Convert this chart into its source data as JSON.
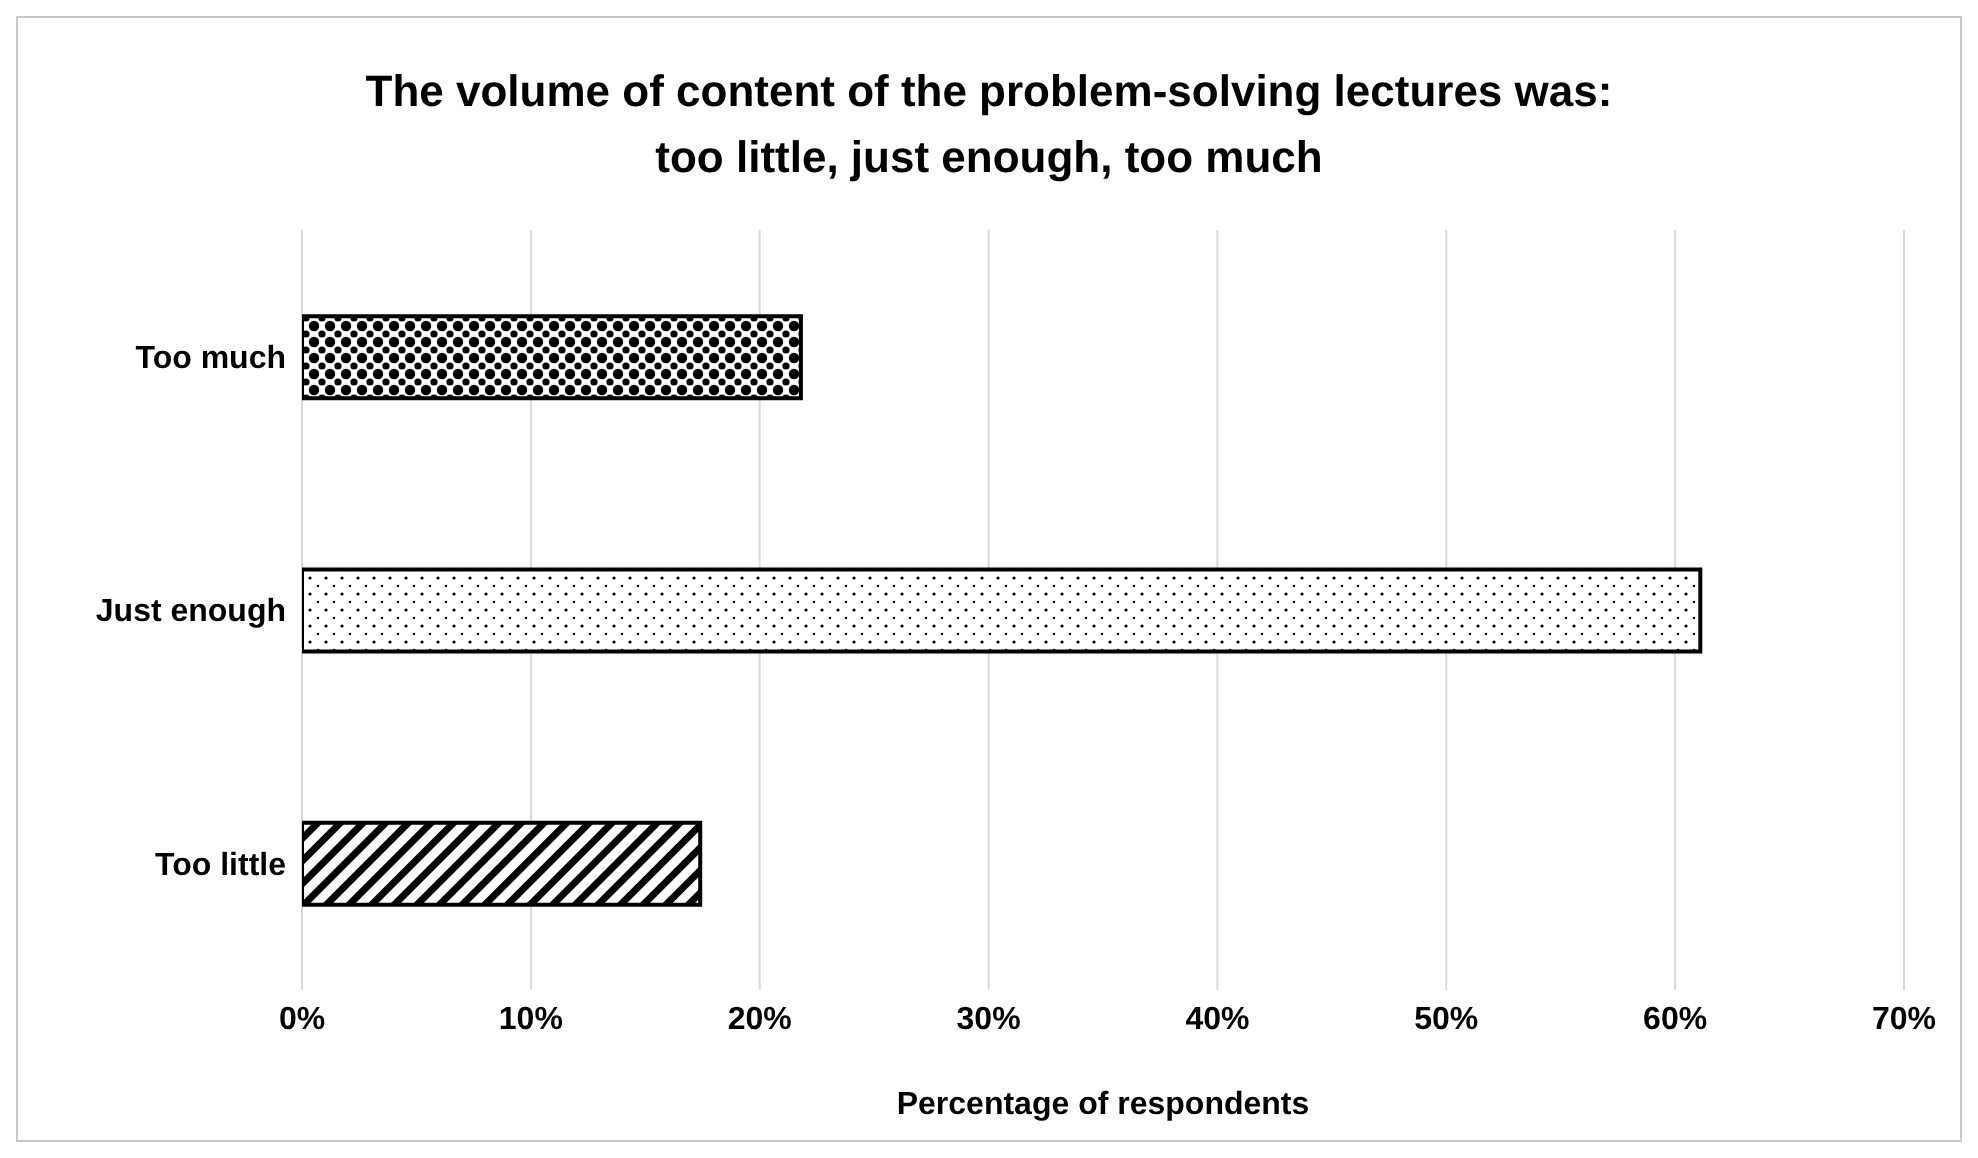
{
  "chart_data": {
    "type": "bar",
    "orientation": "horizontal",
    "title": "The volume of content of the problem-solving lectures was:\ntoo little, just enough, too much",
    "xlabel": "Percentage of respondents",
    "categories": [
      "Too much",
      "Just enough",
      "Too little"
    ],
    "values": [
      21.8,
      61.1,
      17.4
    ],
    "colors": [
      "#000000",
      "#000000",
      "#000000"
    ],
    "xlim": [
      0,
      70
    ],
    "xticks": [
      {
        "value": 0,
        "label": "0%"
      },
      {
        "value": 10,
        "label": "10%"
      },
      {
        "value": 20,
        "label": "20%"
      },
      {
        "value": 30,
        "label": "30%"
      },
      {
        "value": 40,
        "label": "40%"
      },
      {
        "value": 50,
        "label": "50%"
      },
      {
        "value": 60,
        "label": "60%"
      },
      {
        "value": 70,
        "label": "70%"
      }
    ],
    "grid": "x",
    "legend": false
  }
}
